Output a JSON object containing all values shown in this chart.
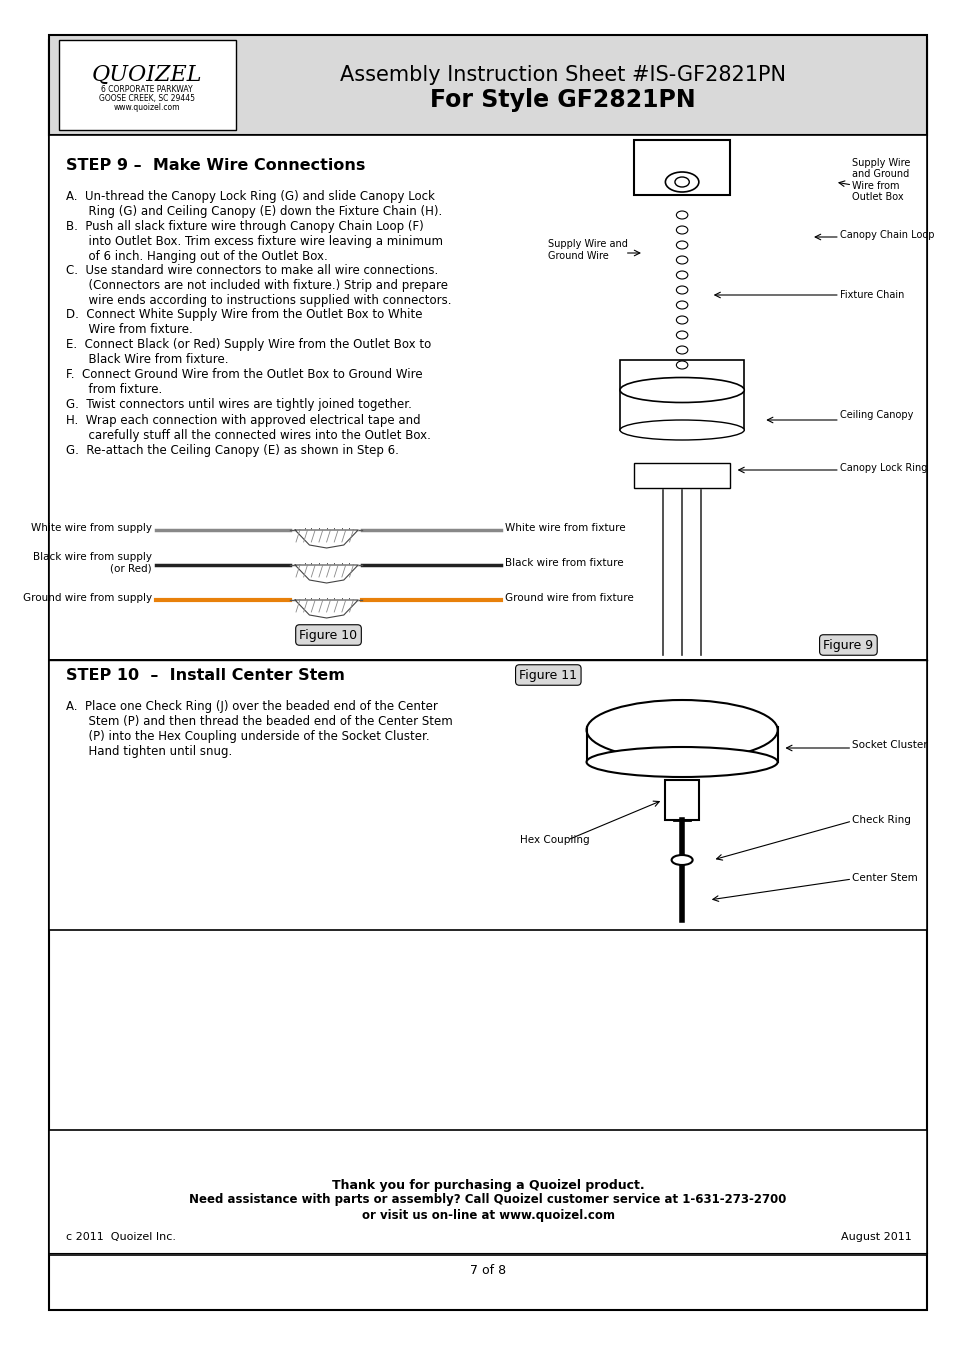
{
  "page_bg": "#ffffff",
  "outer_border_color": "#000000",
  "header_bg": "#d9d9d9",
  "title_line1": "Assembly Instruction Sheet #IS-GF2821PN",
  "title_line2": "For Style GF2821PN",
  "logo_text": "QUOIZEL",
  "logo_sub1": "6 CORPORATE PARKWAY",
  "logo_sub2": "GOOSE CREEK, SC 29445",
  "logo_sub3": "www.quoizel.com",
  "step9_title": "STEP 9 –  Make Wire Connections",
  "step9_instructions": [
    "A.  Un-thread the Canopy Lock Ring (G) and slide Canopy Lock\n      Ring (G) and Ceiling Canopy (E) down the Fixture Chain (H).",
    "B.  Push all slack fixture wire through Canopy Chain Loop (F)\n      into Outlet Box. Trim excess fixture wire leaving a minimum\n      of 6 inch. Hanging out of the Outlet Box.",
    "C.  Use standard wire connectors to make all wire connections.\n      (Connectors are not included with fixture.) Strip and prepare\n      wire ends according to instructions supplied with connectors.",
    "D.  Connect White Supply Wire from the Outlet Box to White\n      Wire from fixture.",
    "E.  Connect Black (or Red) Supply Wire from the Outlet Box to\n      Black Wire from fixture.",
    "F.  Connect Ground Wire from the Outlet Box to Ground Wire\n      from fixture.",
    "G.  Twist connectors until wires are tightly joined together.",
    "H.  Wrap each connection with approved electrical tape and\n      carefully stuff all the connected wires into the Outlet Box.",
    "G.  Re-attach the Ceiling Canopy (E) as shown in Step 6."
  ],
  "fig10_label": "Figure 10",
  "wire_labels_left": [
    "White wire from supply",
    "Black wire from supply\n(or Red)",
    "Ground wire from supply"
  ],
  "wire_labels_right": [
    "White wire from fixture",
    "Black wire from fixture",
    "Ground wire from fixture"
  ],
  "wire_colors": [
    "#888888",
    "#222222",
    "#e8800a"
  ],
  "step10_title": "STEP 10  –  Install Center Stem",
  "fig11_label": "Figure 11",
  "step10_instructions": [
    "A.  Place one Check Ring (J) over the beaded end of the Center\n      Stem (P) and then thread the beaded end of the Center Stem\n      (P) into the Hex Coupling underside of the Socket Cluster.\n      Hand tighten until snug."
  ],
  "fig11_labels": [
    "Socket Cluster",
    "Check Ring",
    "Center Stem",
    "Hex Coupling"
  ],
  "footer_thank_you": "Thank you for purchasing a Quoizel product.",
  "footer_line2": "Need assistance with parts or assembly? Call Quoizel customer service at 1-631-273-2700",
  "footer_line3": "or visit us on-line at www.quoizel.com",
  "footer_left": "c 2011  Quoizel Inc.",
  "footer_right": "August 2011",
  "page_num": "7 of 8",
  "fig9_labels": [
    "Supply Wire\nand Ground\nWire from\nOutlet Box",
    "Supply Wire and\nGround Wire",
    "Canopy Chain Loop",
    "Fixture Chain",
    "Ceiling Canopy",
    "Canopy Lock Ring"
  ],
  "fig9_caption": "Figure 9"
}
